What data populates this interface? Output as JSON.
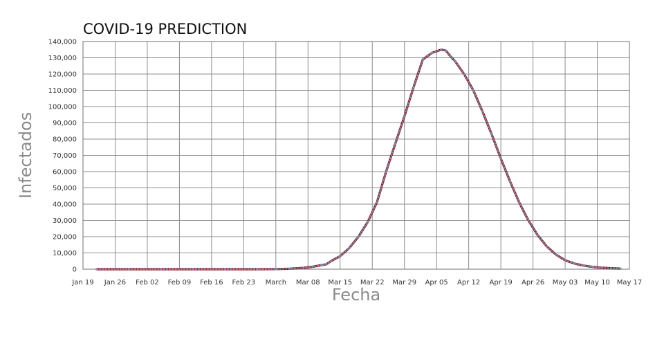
{
  "chart_data": {
    "type": "line",
    "title": "COVID-19 PREDICTION",
    "xlabel": "Fecha",
    "ylabel": "Infectados",
    "x_tick_labels": [
      "Jan 19",
      "Jan 26",
      "Feb 02",
      "Feb 09",
      "Feb 16",
      "Feb 23",
      "March",
      "Mar 08",
      "Mar 15",
      "Mar 22",
      "Mar 29",
      "Apr 05",
      "Apr 12",
      "Apr 19",
      "Apr 26",
      "May 03",
      "May 10",
      "May 17"
    ],
    "y_tick_labels": [
      "0",
      "10,000",
      "20,000",
      "30,000",
      "40,000",
      "50,000",
      "60,000",
      "70,000",
      "80,000",
      "90,000",
      "100,000",
      "110,000",
      "120,000",
      "130,000",
      "140,000"
    ],
    "xlim": [
      "2020-01-19",
      "2020-05-17"
    ],
    "ylim": [
      0,
      140000
    ],
    "grid": true,
    "legend": "none",
    "series": [
      {
        "line_color": "#8b0000",
        "dot_color": "#7a8aa8",
        "x": [
          "2020-01-22",
          "2020-01-29",
          "2020-02-05",
          "2020-02-12",
          "2020-02-19",
          "2020-02-26",
          "2020-03-01",
          "2020-03-04",
          "2020-03-07",
          "2020-03-09",
          "2020-03-11",
          "2020-03-12",
          "2020-03-13",
          "2020-03-15",
          "2020-03-17",
          "2020-03-19",
          "2020-03-21",
          "2020-03-23",
          "2020-03-25",
          "2020-03-27",
          "2020-03-29",
          "2020-03-31",
          "2020-04-02",
          "2020-04-04",
          "2020-04-06",
          "2020-04-07",
          "2020-04-08",
          "2020-04-09",
          "2020-04-11",
          "2020-04-13",
          "2020-04-15",
          "2020-04-17",
          "2020-04-19",
          "2020-04-21",
          "2020-04-23",
          "2020-04-25",
          "2020-04-27",
          "2020-04-29",
          "2020-05-01",
          "2020-05-03",
          "2020-05-05",
          "2020-05-07",
          "2020-05-09",
          "2020-05-11",
          "2020-05-13",
          "2020-05-15"
        ],
        "y": [
          0,
          0,
          0,
          0,
          0,
          0,
          100,
          300,
          800,
          1500,
          2500,
          3000,
          5000,
          8000,
          13000,
          20000,
          29000,
          41000,
          60000,
          77000,
          94000,
          112000,
          129000,
          133000,
          135000,
          134500,
          131000,
          128000,
          120000,
          110000,
          97000,
          83000,
          68000,
          54000,
          41000,
          30000,
          21000,
          14000,
          9000,
          5500,
          3500,
          2200,
          1400,
          900,
          600,
          400
        ]
      }
    ]
  }
}
